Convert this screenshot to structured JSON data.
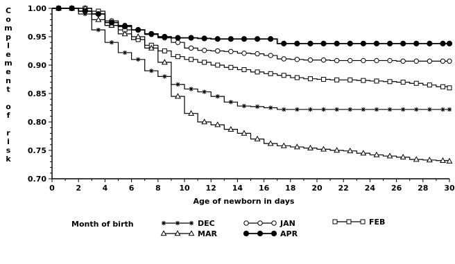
{
  "chart_data": {
    "type": "line",
    "title": "",
    "xlabel": "Age of newborn in days",
    "ylabel": "Complement of risk",
    "xlim": [
      0,
      30
    ],
    "ylim": [
      0.7,
      1.0
    ],
    "x_ticks": [
      0,
      2,
      4,
      6,
      8,
      10,
      12,
      14,
      16,
      18,
      20,
      22,
      24,
      26,
      28,
      30
    ],
    "y_ticks": [
      "0.70",
      "0.75",
      "0.80",
      "0.85",
      "0.90",
      "0.95",
      "1.00"
    ],
    "step": true,
    "grid": false,
    "legend_title": "Month of birth",
    "legend_position": "bottom",
    "series": [
      {
        "name": "DEC",
        "marker": "star",
        "x": [
          0,
          1,
          2,
          3,
          4,
          5,
          6,
          7,
          8,
          9,
          10,
          11,
          12,
          13,
          14,
          15,
          16,
          17,
          18,
          19,
          20,
          21,
          22,
          23,
          24,
          25,
          26,
          27,
          28,
          29,
          30
        ],
        "y": [
          1.0,
          1.0,
          0.99,
          0.962,
          0.94,
          0.922,
          0.91,
          0.89,
          0.88,
          0.866,
          0.858,
          0.853,
          0.845,
          0.835,
          0.828,
          0.827,
          0.825,
          0.822,
          0.822,
          0.822,
          0.822,
          0.822,
          0.822,
          0.822,
          0.822,
          0.822,
          0.822,
          0.822,
          0.822,
          0.822,
          0.822
        ]
      },
      {
        "name": "JAN",
        "marker": "circle-open",
        "x": [
          0,
          1,
          2,
          3,
          4,
          5,
          6,
          7,
          8,
          9,
          10,
          11,
          12,
          13,
          14,
          15,
          16,
          17,
          18,
          19,
          20,
          21,
          22,
          23,
          24,
          25,
          26,
          27,
          28,
          29,
          30
        ],
        "y": [
          1.0,
          1.0,
          1.0,
          0.99,
          0.978,
          0.97,
          0.962,
          0.954,
          0.948,
          0.94,
          0.93,
          0.926,
          0.925,
          0.924,
          0.921,
          0.92,
          0.917,
          0.911,
          0.91,
          0.909,
          0.909,
          0.908,
          0.908,
          0.908,
          0.908,
          0.908,
          0.907,
          0.907,
          0.907,
          0.907,
          0.907
        ]
      },
      {
        "name": "FEB",
        "marker": "square-open",
        "x": [
          0,
          1,
          2,
          3,
          4,
          5,
          6,
          7,
          8,
          9,
          10,
          11,
          12,
          13,
          14,
          15,
          16,
          17,
          18,
          19,
          20,
          21,
          22,
          23,
          24,
          25,
          26,
          27,
          28,
          29,
          30
        ],
        "y": [
          1.0,
          1.0,
          1.0,
          0.995,
          0.97,
          0.962,
          0.945,
          0.935,
          0.925,
          0.915,
          0.91,
          0.905,
          0.9,
          0.896,
          0.892,
          0.888,
          0.885,
          0.882,
          0.878,
          0.876,
          0.875,
          0.874,
          0.874,
          0.873,
          0.872,
          0.871,
          0.87,
          0.868,
          0.865,
          0.862,
          0.86
        ]
      },
      {
        "name": "MAR",
        "marker": "triangle-open",
        "x": [
          0,
          1,
          2,
          3,
          4,
          5,
          6,
          7,
          8,
          9,
          10,
          11,
          12,
          13,
          14,
          15,
          16,
          17,
          18,
          19,
          20,
          21,
          22,
          23,
          24,
          25,
          26,
          27,
          28,
          29,
          30
        ],
        "y": [
          1.0,
          1.0,
          1.0,
          0.98,
          0.97,
          0.955,
          0.95,
          0.93,
          0.905,
          0.845,
          0.815,
          0.8,
          0.795,
          0.787,
          0.78,
          0.77,
          0.762,
          0.758,
          0.756,
          0.754,
          0.752,
          0.75,
          0.749,
          0.745,
          0.742,
          0.74,
          0.738,
          0.734,
          0.733,
          0.732,
          0.731
        ]
      },
      {
        "name": "APR",
        "marker": "circle-filled",
        "x": [
          0,
          1,
          2,
          3,
          4,
          5,
          6,
          7,
          8,
          9,
          10,
          11,
          12,
          13,
          14,
          15,
          16,
          17,
          18,
          19,
          20,
          21,
          22,
          23,
          24,
          25,
          26,
          27,
          28,
          29,
          30
        ],
        "y": [
          1.0,
          1.0,
          0.995,
          0.99,
          0.975,
          0.968,
          0.962,
          0.955,
          0.95,
          0.948,
          0.948,
          0.947,
          0.946,
          0.946,
          0.946,
          0.946,
          0.946,
          0.938,
          0.938,
          0.938,
          0.938,
          0.938,
          0.938,
          0.938,
          0.938,
          0.938,
          0.938,
          0.938,
          0.938,
          0.938,
          0.938
        ]
      }
    ]
  }
}
